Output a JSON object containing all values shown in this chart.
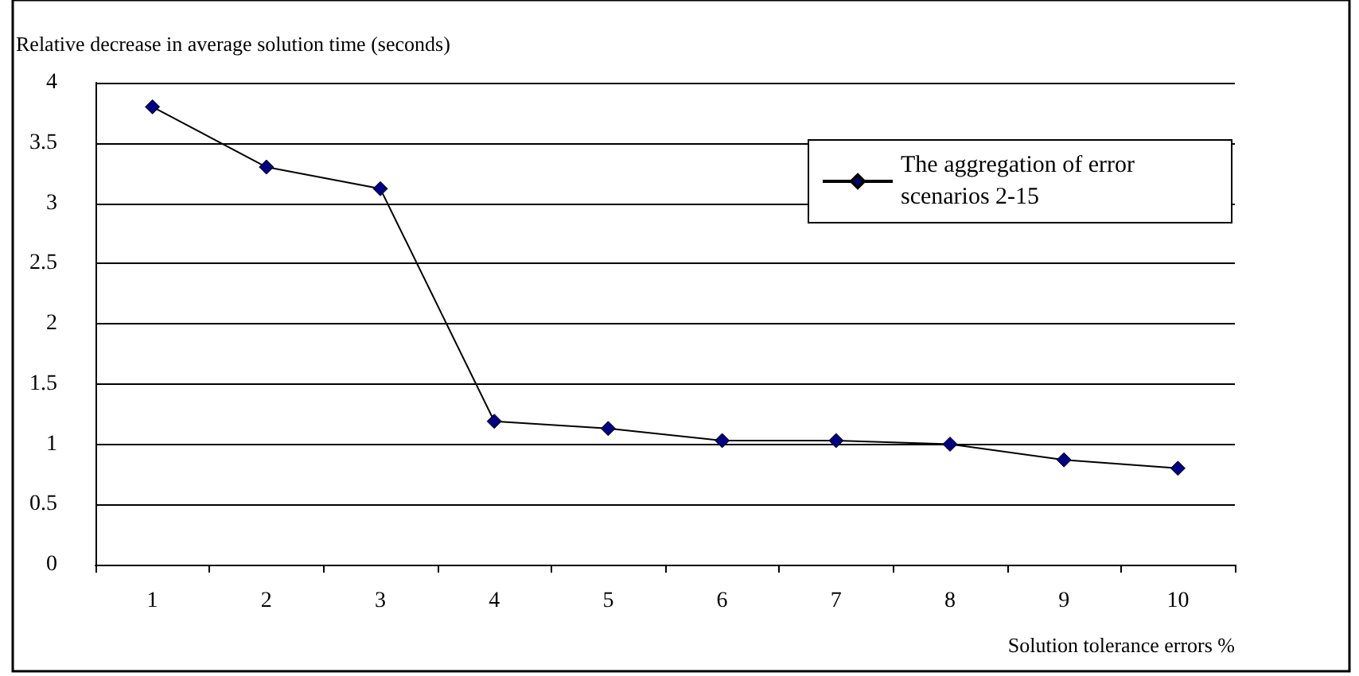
{
  "chart_data": {
    "type": "line",
    "ylabel": "Relative decrease in average solution time (seconds)",
    "xlabel": "Solution tolerance errors %",
    "categories": [
      "1",
      "2",
      "3",
      "4",
      "5",
      "6",
      "7",
      "8",
      "9",
      "10"
    ],
    "series": [
      {
        "name": "The aggregation of error scenarios 2-15",
        "color": "#000080",
        "values": [
          3.8,
          3.3,
          3.12,
          1.19,
          1.13,
          1.03,
          1.03,
          1.0,
          0.87,
          0.8
        ]
      }
    ],
    "ylim": [
      0,
      4
    ],
    "yticks": [
      0,
      0.5,
      1,
      1.5,
      2,
      2.5,
      3,
      3.5,
      4
    ],
    "grid": "y",
    "legend": "top right",
    "marker": "diamond",
    "line_style": "solid"
  }
}
